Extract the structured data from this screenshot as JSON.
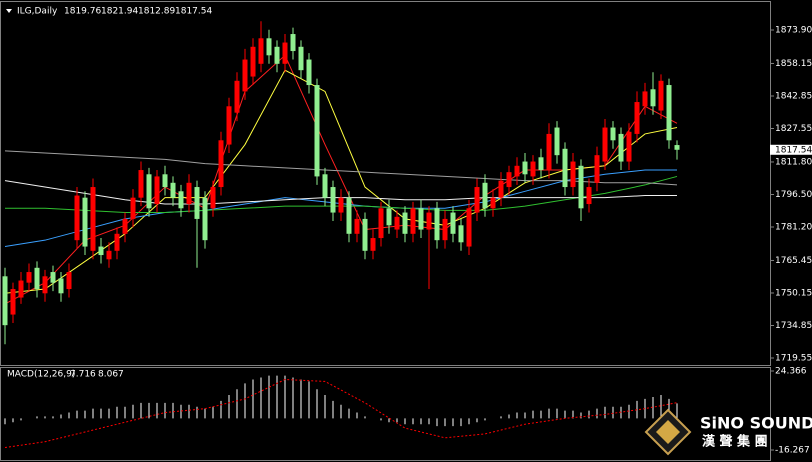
{
  "chart_data": [
    {
      "type": "candlestick",
      "title": "ILG,Daily",
      "up_color": "#ff0000",
      "down_color": "#90ee90",
      "open": [
        1758,
        1740,
        1748,
        1755,
        1762,
        1750,
        1760,
        1757,
        1752,
        1775,
        1795,
        1770,
        1772,
        1766,
        1770,
        1778,
        1785,
        1795,
        1806,
        1792,
        1806,
        1802,
        1798,
        1792,
        1800,
        1795,
        1790,
        1800,
        1820,
        1835,
        1845,
        1852,
        1858,
        1870,
        1866,
        1858,
        1872,
        1866,
        1860,
        1848,
        1806,
        1800,
        1788,
        1795,
        1778,
        1785,
        1770,
        1776,
        1790,
        1780,
        1788,
        1778,
        1790,
        1780,
        1790,
        1775,
        1788,
        1782,
        1772,
        1788,
        1802,
        1790,
        1795,
        1800,
        1805,
        1812,
        1805,
        1814,
        1808,
        1828,
        1818,
        1800,
        1810,
        1792,
        1802,
        1812,
        1828,
        1825,
        1812,
        1825,
        1838,
        1846,
        1836,
        1848,
        1819.76
      ],
      "high": [
        1762,
        1755,
        1760,
        1764,
        1765,
        1761,
        1763,
        1760,
        1764,
        1800,
        1798,
        1804,
        1776,
        1774,
        1781,
        1788,
        1799,
        1812,
        1809,
        1808,
        1810,
        1805,
        1801,
        1806,
        1803,
        1798,
        1803,
        1826,
        1842,
        1854,
        1865,
        1870,
        1878,
        1874,
        1869,
        1872,
        1875,
        1869,
        1863,
        1851,
        1809,
        1803,
        1799,
        1798,
        1789,
        1788,
        1780,
        1793,
        1794,
        1789,
        1791,
        1793,
        1794,
        1791,
        1793,
        1789,
        1791,
        1785,
        1794,
        1804,
        1806,
        1799,
        1807,
        1810,
        1814,
        1816,
        1815,
        1818,
        1830,
        1831,
        1821,
        1816,
        1813,
        1804,
        1819,
        1832,
        1831,
        1828,
        1830,
        1845,
        1849,
        1854,
        1853,
        1851,
        1821.94
      ],
      "low": [
        1726,
        1736,
        1745,
        1751,
        1748,
        1746,
        1751,
        1746,
        1748,
        1771,
        1768,
        1766,
        1764,
        1762,
        1766,
        1774,
        1781,
        1791,
        1786,
        1788,
        1796,
        1791,
        1786,
        1788,
        1762,
        1771,
        1786,
        1796,
        1816,
        1831,
        1841,
        1848,
        1854,
        1858,
        1854,
        1854,
        1860,
        1851,
        1844,
        1801,
        1791,
        1784,
        1784,
        1774,
        1774,
        1766,
        1766,
        1772,
        1778,
        1776,
        1774,
        1774,
        1776,
        1752,
        1771,
        1771,
        1774,
        1770,
        1768,
        1784,
        1786,
        1786,
        1791,
        1796,
        1801,
        1802,
        1801,
        1804,
        1804,
        1811,
        1796,
        1796,
        1784,
        1788,
        1798,
        1808,
        1818,
        1808,
        1808,
        1821,
        1834,
        1834,
        1832,
        1818,
        1812.89
      ],
      "close": [
        1735,
        1752,
        1756,
        1760,
        1752,
        1758,
        1755,
        1750,
        1760,
        1796,
        1772,
        1800,
        1768,
        1770,
        1778,
        1785,
        1795,
        1808,
        1790,
        1805,
        1800,
        1795,
        1790,
        1802,
        1785,
        1775,
        1800,
        1822,
        1838,
        1850,
        1860,
        1866,
        1870,
        1862,
        1858,
        1868,
        1864,
        1855,
        1848,
        1805,
        1795,
        1788,
        1795,
        1778,
        1785,
        1770,
        1776,
        1790,
        1782,
        1786,
        1778,
        1790,
        1780,
        1788,
        1775,
        1785,
        1778,
        1774,
        1790,
        1800,
        1790,
        1795,
        1803,
        1807,
        1810,
        1806,
        1812,
        1808,
        1825,
        1815,
        1800,
        1812,
        1790,
        1800,
        1815,
        1828,
        1822,
        1812,
        1826,
        1840,
        1845,
        1838,
        1850,
        1822,
        1817.54
      ],
      "series": [
        {
          "color": "#ff2020",
          "x": [
            0,
            5,
            10,
            15,
            20,
            25,
            30,
            35,
            40,
            45,
            50,
            55,
            60,
            65,
            70,
            75,
            80,
            84
          ],
          "values": [
            1745,
            1755,
            1775,
            1782,
            1800,
            1790,
            1845,
            1862,
            1820,
            1780,
            1782,
            1780,
            1796,
            1808,
            1808,
            1810,
            1838,
            1830
          ]
        },
        {
          "color": "#ffff40",
          "x": [
            0,
            5,
            10,
            15,
            20,
            25,
            30,
            35,
            40,
            45,
            50,
            55,
            60,
            65,
            70,
            75,
            80,
            84
          ],
          "values": [
            1750,
            1752,
            1765,
            1778,
            1795,
            1795,
            1820,
            1855,
            1845,
            1800,
            1785,
            1782,
            1790,
            1802,
            1808,
            1810,
            1825,
            1828
          ]
        },
        {
          "color": "#3aa0ff",
          "x": [
            0,
            5,
            10,
            15,
            20,
            25,
            30,
            35,
            40,
            45,
            50,
            55,
            60,
            65,
            70,
            75,
            80,
            84
          ],
          "values": [
            1772,
            1775,
            1780,
            1785,
            1788,
            1789,
            1792,
            1795,
            1793,
            1791,
            1790,
            1790,
            1793,
            1798,
            1803,
            1806,
            1808,
            1808
          ]
        },
        {
          "color": "#30c030",
          "x": [
            0,
            5,
            10,
            15,
            20,
            25,
            30,
            35,
            40,
            45,
            50,
            55,
            60,
            65,
            70,
            75,
            80,
            84
          ],
          "values": [
            1790,
            1790,
            1789,
            1788,
            1788,
            1789,
            1790,
            1791,
            1791,
            1791,
            1790,
            1789,
            1789,
            1791,
            1794,
            1797,
            1801,
            1805
          ]
        },
        {
          "color": "#f0f0f0",
          "x": [
            0,
            5,
            10,
            15,
            20,
            25,
            30,
            35,
            40,
            45,
            50,
            55,
            60,
            65,
            70,
            75,
            80,
            84
          ],
          "values": [
            1803,
            1800,
            1797,
            1794,
            1792,
            1792,
            1793,
            1794,
            1795,
            1795,
            1794,
            1794,
            1795,
            1795,
            1795,
            1795,
            1796,
            1796
          ]
        },
        {
          "color": "#a0a0a0",
          "x": [
            0,
            5,
            10,
            15,
            20,
            25,
            30,
            35,
            40,
            45,
            50,
            55,
            60,
            65,
            70,
            75,
            80,
            84
          ],
          "values": [
            1817,
            1816,
            1815,
            1814,
            1813,
            1811,
            1810,
            1809,
            1808,
            1807,
            1806,
            1805,
            1804,
            1803,
            1803,
            1802,
            1802,
            1801
          ]
        }
      ],
      "ylim": [
        1716.26,
        1887.08
      ],
      "yticks": [
        {
          "value": 1873.9,
          "label": "1873.90"
        },
        1858.15,
        1842.85,
        1827.55,
        {
          "value": 1811.8,
          "label": "1811.80"
        },
        {
          "value": 1796.5,
          "label": "1796.50"
        },
        {
          "value": 1781.2,
          "label": "1781.20"
        },
        1765.45,
        1750.15,
        1734.85,
        1719.55
      ]
    },
    {
      "type": "macd",
      "title": "MACD(12,26,9)",
      "bar_color": "#ffffff",
      "values": [
        -3,
        -2,
        -1,
        0,
        1,
        1,
        1,
        2,
        3,
        4,
        4,
        5,
        5,
        5,
        6,
        6,
        7,
        8,
        8,
        8,
        8,
        8,
        7,
        7,
        6,
        5,
        6,
        9,
        12,
        15,
        18,
        20,
        21,
        22,
        22,
        22,
        21,
        20,
        19,
        15,
        12,
        9,
        7,
        5,
        3,
        1,
        0,
        -1,
        -2,
        -2,
        -3,
        -3,
        -3,
        -3,
        -4,
        -4,
        -4,
        -4,
        -3,
        -2,
        -1,
        0,
        1,
        2,
        3,
        3,
        4,
        4,
        5,
        5,
        4,
        4,
        3,
        4,
        5,
        6,
        6,
        6,
        7,
        9,
        10,
        11,
        12,
        10,
        7.716
      ],
      "signal": {
        "color": "#ff0000",
        "x": [
          0,
          5,
          10,
          15,
          20,
          25,
          30,
          35,
          40,
          45,
          50,
          55,
          60,
          65,
          70,
          75,
          80,
          84
        ],
        "values": [
          -15,
          -12,
          -7,
          -2,
          3,
          5,
          10,
          20,
          19,
          8,
          -5,
          -10,
          -8,
          -3,
          0,
          2,
          5,
          8.067
        ]
      },
      "ylim": [
        -21.41,
        26.42
      ],
      "yticks": [
        24.366,
        -16.267
      ]
    }
  ],
  "logo": {
    "name": "SiNO SOUND",
    "subname": "漢 聲 集 團"
  }
}
